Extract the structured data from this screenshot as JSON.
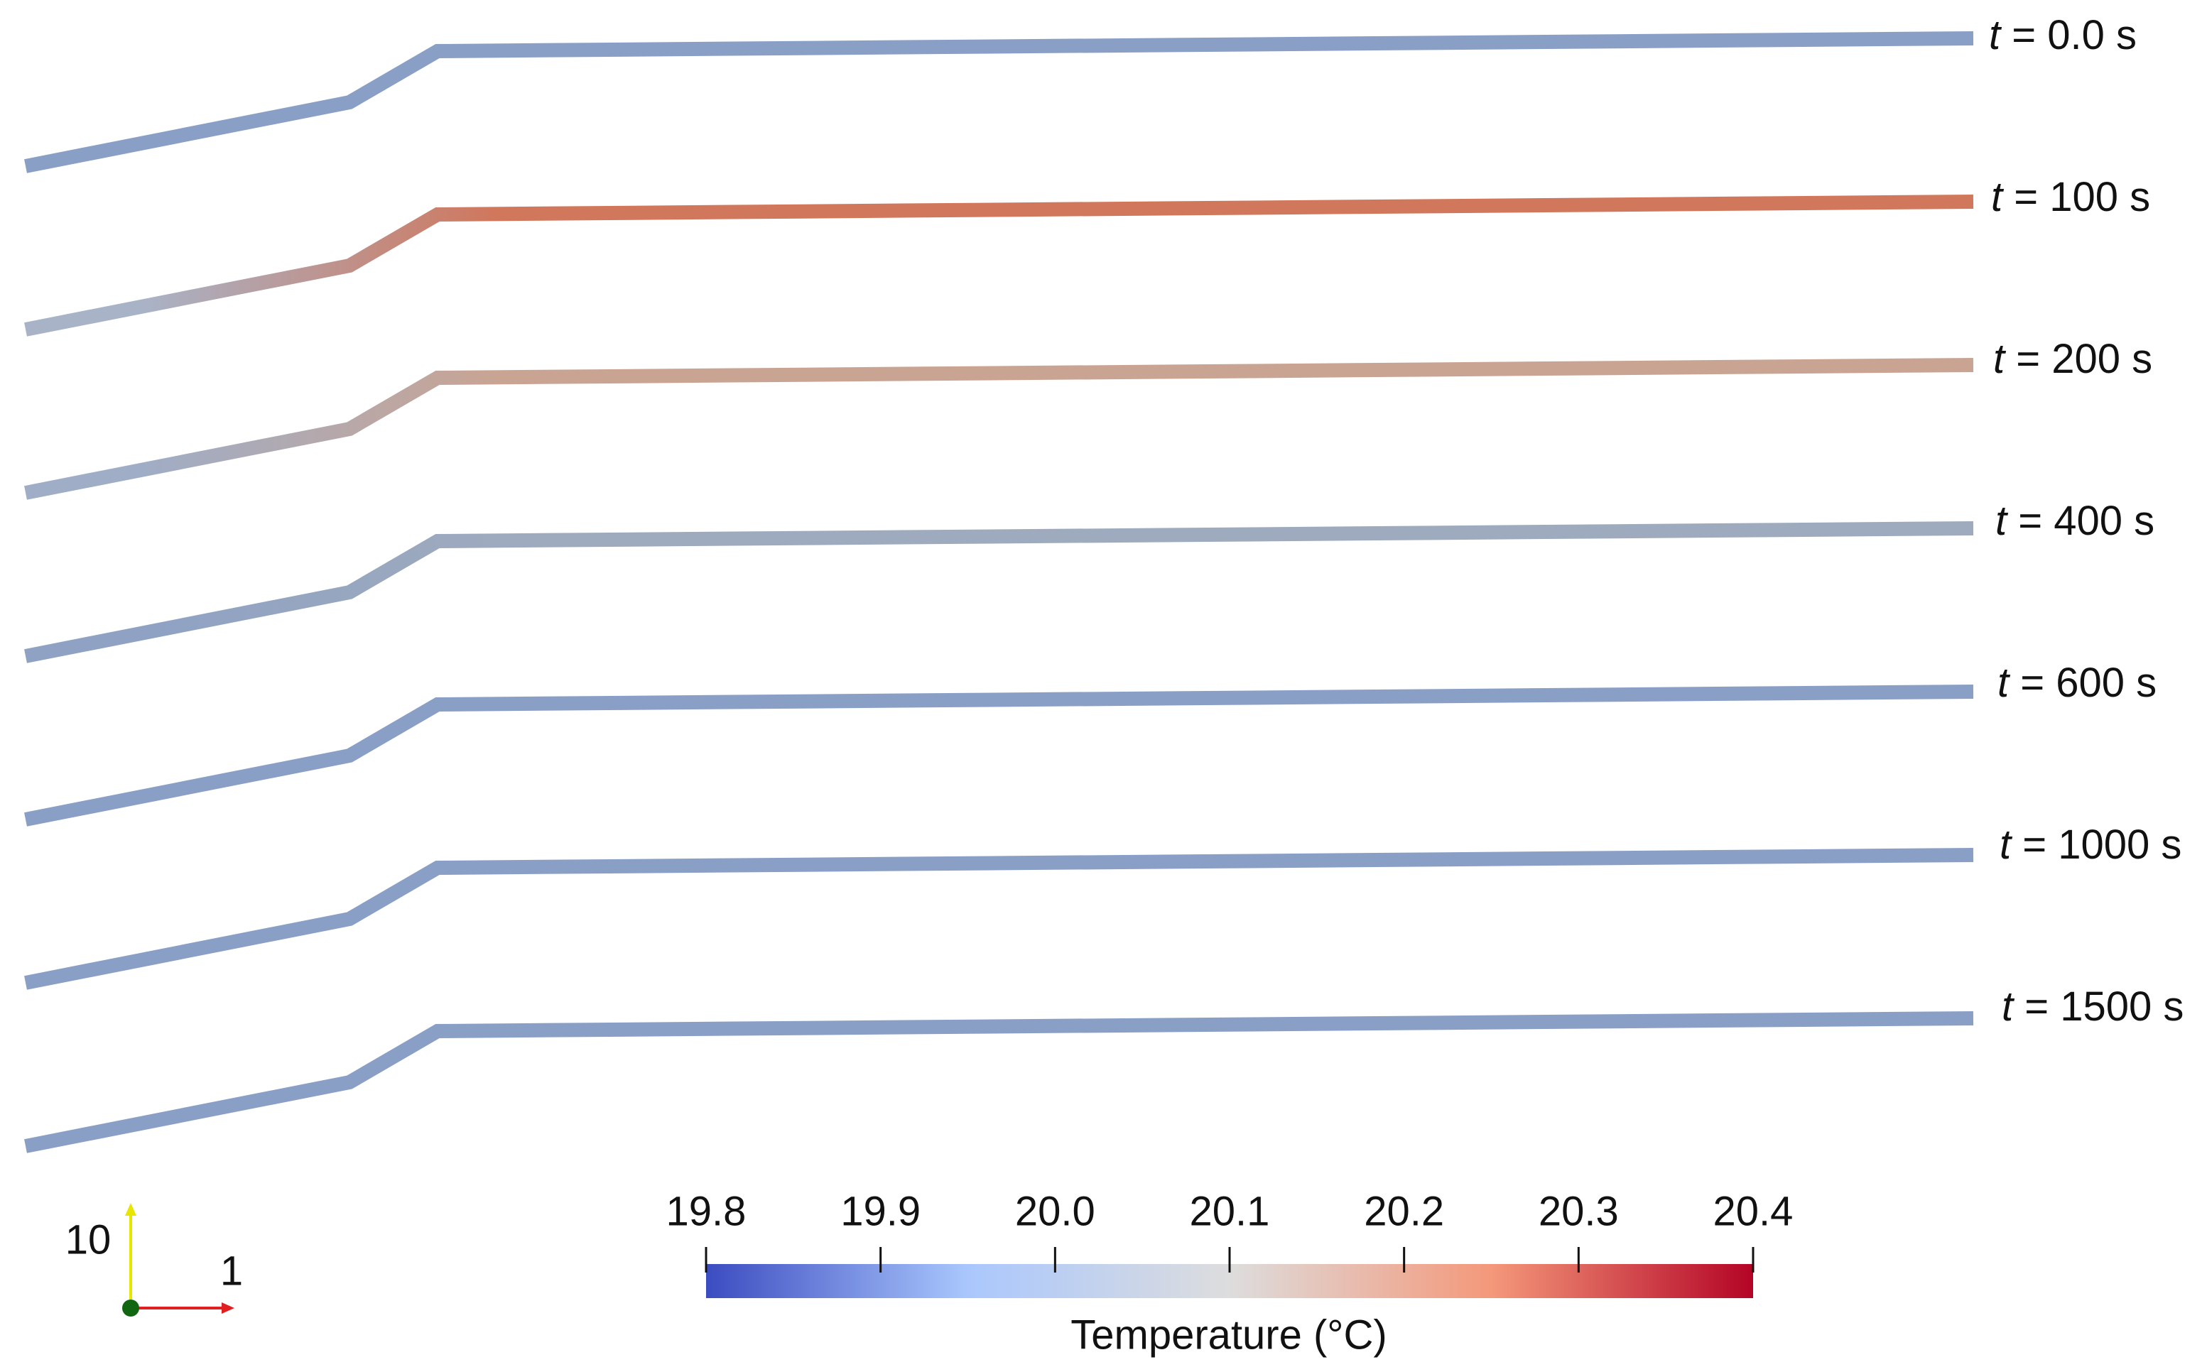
{
  "frames": [
    {
      "var": "t",
      "text": "= 0.0 s",
      "colors": [
        "#8a9fc6",
        "#8a9fc6"
      ]
    },
    {
      "var": "t",
      "text": "= 100 s",
      "colors": [
        "#a9b3c7",
        "#d0775c"
      ]
    },
    {
      "var": "t",
      "text": "= 200 s",
      "colors": [
        "#9fadc6",
        "#c9a493"
      ]
    },
    {
      "var": "t",
      "text": "= 400 s",
      "colors": [
        "#8fa2c4",
        "#9eaabd"
      ]
    },
    {
      "var": "t",
      "text": "= 600 s",
      "colors": [
        "#8a9fc6",
        "#8a9fc6"
      ]
    },
    {
      "var": "t",
      "text": "= 1000 s",
      "colors": [
        "#8a9fc6",
        "#8a9fc6"
      ]
    },
    {
      "var": "t",
      "text": "= 1500 s",
      "colors": [
        "#8a9fc6",
        "#8a9fc6"
      ]
    }
  ],
  "colorbar": {
    "title": "Temperature (°C)",
    "lim": [
      19.8,
      20.4
    ],
    "ticks": [
      19.8,
      19.9,
      {
        "value": 20,
        "label": "20.0"
      },
      20.1,
      20.2,
      20.3,
      20.4
    ],
    "colors": [
      "#3b4cc0",
      "#aac7fd",
      "#dddddd",
      "#f4987a",
      "#b40426"
    ]
  },
  "axes_triad": {
    "y_label": "10",
    "x_label": "1"
  }
}
